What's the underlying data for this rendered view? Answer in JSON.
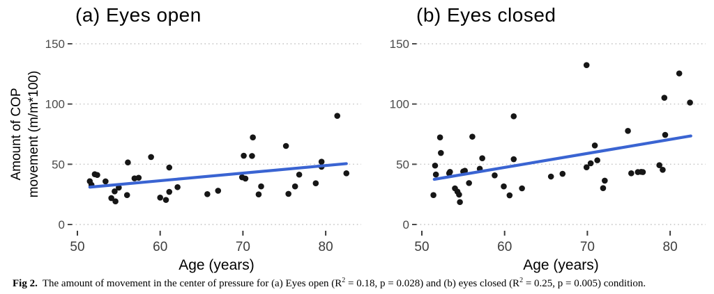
{
  "caption": {
    "label": "Fig 2.",
    "part1": "The amount of movement in the center of pressure for (a) Eyes open (R",
    "sup1": "2",
    "part2": " = 0.18, p = 0.028) and (b) eyes closed (R",
    "sup2": "2",
    "part3": " = 0.25, p = 0.005) condition."
  },
  "colors": {
    "point": "#161616",
    "trend_line": "#3a64d2",
    "grid": "#c4c4c4",
    "y_tick_label": "#4a4a4a",
    "x_tick_label": "#3d3d3d",
    "axis_title": "#000000",
    "background": "#ffffff"
  },
  "chart_data": [
    {
      "type": "scatter",
      "title": "(a) Eyes open",
      "xlabel": "Age (years)",
      "ylabel": "Amount of COP movement (m/m*100)",
      "ylabel_lines": [
        "Amount of COP",
        "movement (m/m*100)"
      ],
      "xlim": [
        49.4,
        84.6
      ],
      "ylim": [
        -8,
        157
      ],
      "x_ticks": [
        50,
        60,
        70,
        80
      ],
      "y_ticks": [
        0,
        50,
        100,
        150
      ],
      "grid": "horizontal-dotted",
      "legend": "none",
      "r_squared": 0.18,
      "p_value": 0.028,
      "trend_line": {
        "x": [
          51.5,
          82.5
        ],
        "y": [
          31,
          50.5
        ]
      },
      "points": [
        [
          51.5,
          35.9
        ],
        [
          51.7,
          32.9
        ],
        [
          52.1,
          41.7
        ],
        [
          52.4,
          41.1
        ],
        [
          53.4,
          35.8
        ],
        [
          54.1,
          21.9
        ],
        [
          54.5,
          27.5
        ],
        [
          54.6,
          19.2
        ],
        [
          55.0,
          30.6
        ],
        [
          56.0,
          24.4
        ],
        [
          56.1,
          51.5
        ],
        [
          56.9,
          38.3
        ],
        [
          57.4,
          38.8
        ],
        [
          58.9,
          56.0
        ],
        [
          60.0,
          22.3
        ],
        [
          60.7,
          20.4
        ],
        [
          61.1,
          27.1
        ],
        [
          61.1,
          47.3
        ],
        [
          62.1,
          31.0
        ],
        [
          65.7,
          25.2
        ],
        [
          67.0,
          28.0
        ],
        [
          69.9,
          39.2
        ],
        [
          70.1,
          57.1
        ],
        [
          70.3,
          38.1
        ],
        [
          71.1,
          56.9
        ],
        [
          71.2,
          72.3
        ],
        [
          71.9,
          25.0
        ],
        [
          72.2,
          31.6
        ],
        [
          75.2,
          65.2
        ],
        [
          75.5,
          25.4
        ],
        [
          76.3,
          31.6
        ],
        [
          76.8,
          41.4
        ],
        [
          78.8,
          34.2
        ],
        [
          79.5,
          52.1
        ],
        [
          79.5,
          47.9
        ],
        [
          81.4,
          90.2
        ],
        [
          82.5,
          42.5
        ]
      ]
    },
    {
      "type": "scatter",
      "title": "(b) Eyes closed",
      "xlabel": "Age (years)",
      "xlim": [
        49.4,
        84.6
      ],
      "ylim": [
        -8,
        157
      ],
      "x_ticks": [
        50,
        60,
        70,
        80
      ],
      "y_ticks": [
        0,
        50,
        100,
        150
      ],
      "grid": "horizontal-dotted",
      "legend": "none",
      "r_squared": 0.25,
      "p_value": 0.005,
      "trend_line": {
        "x": [
          51.5,
          82.5
        ],
        "y": [
          37.5,
          73.5
        ]
      },
      "points": [
        [
          51.4,
          24.4
        ],
        [
          51.6,
          48.9
        ],
        [
          51.7,
          41.5
        ],
        [
          52.2,
          72.3
        ],
        [
          52.3,
          59.4
        ],
        [
          53.3,
          42.5
        ],
        [
          53.4,
          43.7
        ],
        [
          54.0,
          30.0
        ],
        [
          54.3,
          27.3
        ],
        [
          54.5,
          24.8
        ],
        [
          54.6,
          18.6
        ],
        [
          55.0,
          44.0
        ],
        [
          55.2,
          44.6
        ],
        [
          55.7,
          34.4
        ],
        [
          56.1,
          72.9
        ],
        [
          57.0,
          46.3
        ],
        [
          57.3,
          55.0
        ],
        [
          58.8,
          40.8
        ],
        [
          59.9,
          31.6
        ],
        [
          60.6,
          24.2
        ],
        [
          61.1,
          89.8
        ],
        [
          61.1,
          54.2
        ],
        [
          62.1,
          30.0
        ],
        [
          65.6,
          39.8
        ],
        [
          67.0,
          42.1
        ],
        [
          69.9,
          47.5
        ],
        [
          69.9,
          132.3
        ],
        [
          70.4,
          50.8
        ],
        [
          70.9,
          65.6
        ],
        [
          71.2,
          53.3
        ],
        [
          71.9,
          30.2
        ],
        [
          72.1,
          36.4
        ],
        [
          74.9,
          77.7
        ],
        [
          75.3,
          42.5
        ],
        [
          76.1,
          43.5
        ],
        [
          76.5,
          43.7
        ],
        [
          76.7,
          43.5
        ],
        [
          78.7,
          49.2
        ],
        [
          79.1,
          45.4
        ],
        [
          79.3,
          105.2
        ],
        [
          79.4,
          74.4
        ],
        [
          81.1,
          125.4
        ],
        [
          82.4,
          101.2
        ]
      ]
    }
  ]
}
